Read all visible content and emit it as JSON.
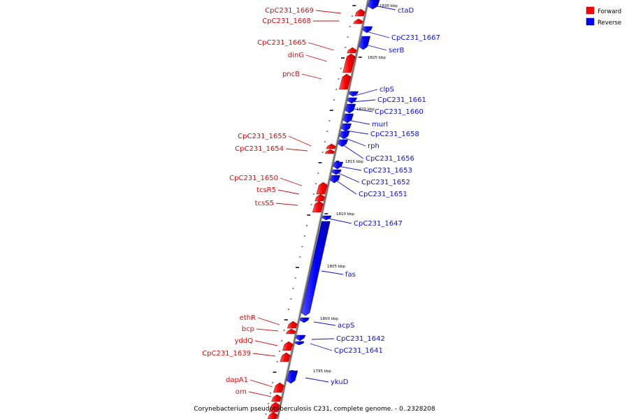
{
  "caption": "Corynebacterium pseudotuberculosis C231, complete genome. - 0..2328208",
  "legend": [
    {
      "label": "Forward",
      "color": "#ff0000"
    },
    {
      "label": "Reverse",
      "color": "#0000ff"
    }
  ],
  "colors": {
    "forward": "#ff0000",
    "reverse": "#0000ff",
    "backbone": "#808080"
  },
  "scale_labels": [
    "1830 kbp",
    "1825 kbp",
    "1820 kbp",
    "1815 kbp",
    "1810 kbp",
    "1805 kbp",
    "1800 kbp",
    "1795 kbp"
  ],
  "forward_genes": [
    "CpC231_1669",
    "CpC231_1668",
    "CpC231_1665",
    "dinG",
    "pncB",
    "CpC231_1655",
    "CpC231_1654",
    "CpC231_1650",
    "tcsR5",
    "tcsS5",
    "ethR",
    "bcp",
    "yddQ",
    "CpC231_1639",
    "dapA1",
    "orn"
  ],
  "reverse_genes": [
    "ctaD",
    "CpC231_1667",
    "serB",
    "clpS",
    "CpC231_1661",
    "CpC231_1660",
    "murI",
    "CpC231_1658",
    "rph",
    "CpC231_1656",
    "CpC231_1653",
    "CpC231_1652",
    "CpC231_1651",
    "CpC231_1647",
    "fas",
    "acpS",
    "CpC231_1642",
    "CpC231_1641",
    "ykuD"
  ]
}
